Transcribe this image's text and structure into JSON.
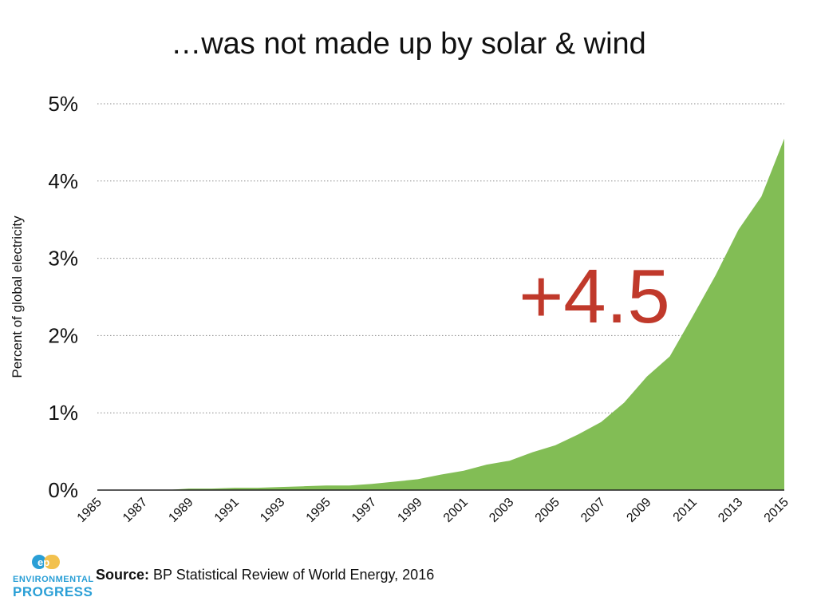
{
  "chart_data": {
    "type": "area",
    "title": "…was not made up by solar & wind",
    "ylabel": "Percent of global electricity",
    "xlabel": "",
    "ylim": [
      0,
      5
    ],
    "yticks": [
      0,
      1,
      2,
      3,
      4,
      5
    ],
    "ytick_labels": [
      "0%",
      "1%",
      "2%",
      "3%",
      "4%",
      "5%"
    ],
    "xticks": [
      "1985",
      "1987",
      "1989",
      "1991",
      "1993",
      "1995",
      "1997",
      "1999",
      "2001",
      "2003",
      "2005",
      "2007",
      "2009",
      "2011",
      "2013",
      "2015"
    ],
    "grid": "horizontal dotted",
    "x": [
      1985,
      1986,
      1987,
      1988,
      1989,
      1990,
      1991,
      1992,
      1993,
      1994,
      1995,
      1996,
      1997,
      1998,
      1999,
      2000,
      2001,
      2002,
      2003,
      2004,
      2005,
      2006,
      2007,
      2008,
      2009,
      2010,
      2011,
      2012,
      2013,
      2014,
      2015
    ],
    "series": [
      {
        "color": "#82bd55",
        "values": [
          0.0,
          0.0,
          0.0,
          0.0,
          0.02,
          0.02,
          0.03,
          0.03,
          0.04,
          0.05,
          0.06,
          0.06,
          0.08,
          0.11,
          0.14,
          0.2,
          0.25,
          0.33,
          0.38,
          0.49,
          0.58,
          0.72,
          0.88,
          1.13,
          1.47,
          1.73,
          2.25,
          2.78,
          3.37,
          3.8,
          4.55
        ]
      }
    ],
    "annotation": {
      "text": "+4.5",
      "color": "#c0392b"
    }
  },
  "source": {
    "label": "Source:",
    "text": "BP Statistical Review of World Energy, 2016"
  },
  "logo": {
    "mark": "ep",
    "line1": "ENVIRONMENTAL",
    "line2": "PROGRESS",
    "color": "#2a9fd6",
    "accent": "#f2c14e"
  }
}
